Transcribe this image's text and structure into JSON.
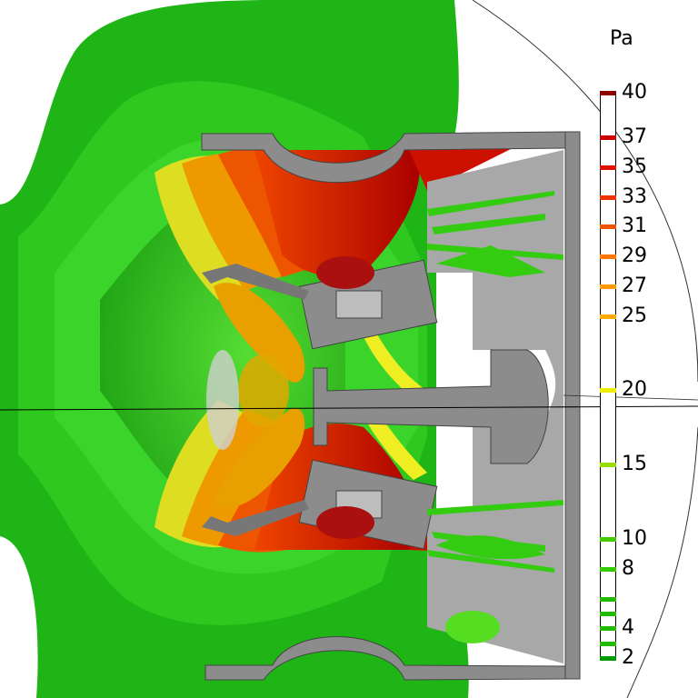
{
  "legend": {
    "unit": "Pa",
    "ticks": [
      {
        "value": 40,
        "label": "40",
        "color": "#8b0000"
      },
      {
        "value": 37,
        "label": "37",
        "color": "#cc0000"
      },
      {
        "value": 35,
        "label": "35",
        "color": "#dd1100"
      },
      {
        "value": 33,
        "label": "33",
        "color": "#ee3300"
      },
      {
        "value": 31,
        "label": "31",
        "color": "#ee5500"
      },
      {
        "value": 29,
        "label": "29",
        "color": "#ff7700"
      },
      {
        "value": 27,
        "label": "27",
        "color": "#ff9900"
      },
      {
        "value": 25,
        "label": "25",
        "color": "#ffaa00"
      },
      {
        "value": 20,
        "label": "20",
        "color": "#eeee00"
      },
      {
        "value": 15,
        "label": "15",
        "color": "#99dd00"
      },
      {
        "value": 10,
        "label": "10",
        "color": "#44cc00"
      },
      {
        "value": 8,
        "label": "8",
        "color": "#33cc00"
      },
      {
        "value": 4,
        "label": "4",
        "color": "#22bb00"
      },
      {
        "value": 2,
        "label": "2",
        "color": "#009900"
      }
    ],
    "extra_lines": [
      6,
      5,
      3
    ]
  },
  "colors": {
    "green": "#22cc11",
    "green_dark": "#119911",
    "green_light": "#55dd33",
    "red": "#cc1100",
    "orange": "#ee9900",
    "yellow": "#dddd22",
    "gray": "#8c8c8c",
    "gray_light": "#a8a8a8"
  }
}
